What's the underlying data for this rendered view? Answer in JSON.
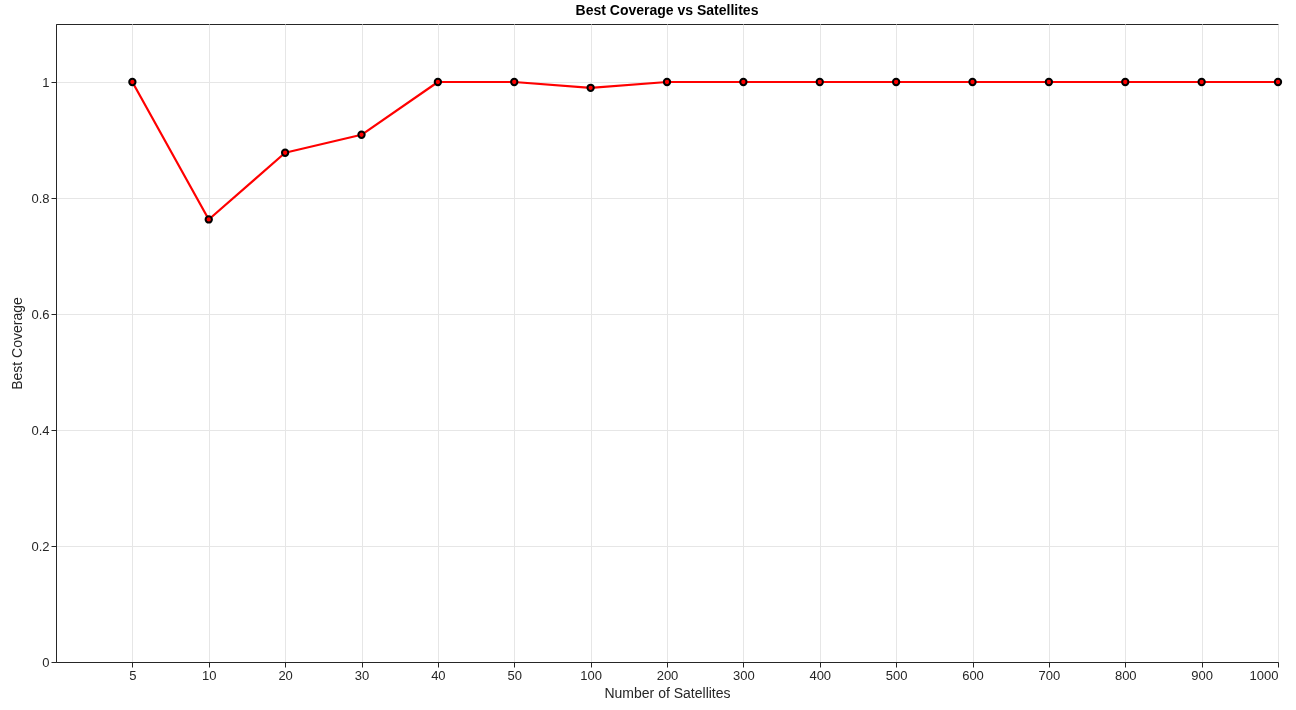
{
  "chart_data": {
    "type": "line",
    "title": "Best Coverage vs Satellites",
    "xlabel": "Number of Satellites",
    "ylabel": "Best Coverage",
    "categories": [
      "5",
      "10",
      "20",
      "30",
      "40",
      "50",
      "100",
      "200",
      "300",
      "400",
      "500",
      "600",
      "700",
      "800",
      "900",
      "1000"
    ],
    "series": [
      {
        "color": "#ff0000",
        "values": [
          1,
          0.763,
          0.878,
          0.909,
          1,
          1,
          0.99,
          1,
          1,
          1,
          1,
          1,
          1,
          1,
          1,
          1
        ]
      }
    ],
    "ylim": [
      0,
      1.1
    ],
    "yticks": [
      0,
      0.2,
      0.4,
      0.6,
      0.8,
      1
    ],
    "grid": true,
    "marker": "circle",
    "line_style": "solid"
  }
}
